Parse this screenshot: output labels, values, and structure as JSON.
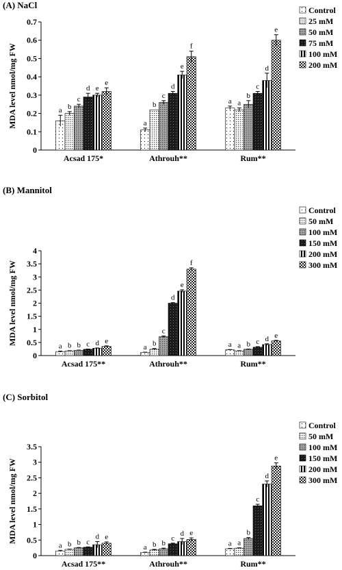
{
  "panels": [
    {
      "title": "(A) NaCl"
    },
    {
      "title": "(B) Mannitol"
    },
    {
      "title": "(C) Sorbitol"
    }
  ],
  "patterns": [
    "dots",
    "fine-dots",
    "grid",
    "solid-dark",
    "vertical-stripes",
    "checker"
  ],
  "chart_data": [
    {
      "type": "bar",
      "title": "(A) NaCl",
      "ylabel": "MDA level nmol/mg FW",
      "categories": [
        "Acsad 175*",
        "Athrouh**",
        "Rum**"
      ],
      "ylim": [
        0,
        0.7
      ],
      "yticks": [
        "0",
        "0.1",
        "0.2",
        "0.3",
        "0.4",
        "0.5",
        "0.6",
        "0.7"
      ],
      "series": [
        {
          "name": "Control",
          "values": [
            0.16,
            0.11,
            0.23
          ],
          "errors": [
            0.03,
            0.01,
            0.01
          ],
          "letters": [
            "a",
            "a",
            "a"
          ]
        },
        {
          "name": "25 mM",
          "values": [
            0.2,
            0.22,
            0.22
          ],
          "errors": [
            0.01,
            0.0,
            0.01
          ],
          "letters": [
            "b",
            "b",
            "a"
          ]
        },
        {
          "name": "50 mM",
          "values": [
            0.24,
            0.26,
            0.25
          ],
          "errors": [
            0.01,
            0.01,
            0.02
          ],
          "letters": [
            "c",
            "c",
            "b"
          ]
        },
        {
          "name": "75 mM",
          "values": [
            0.29,
            0.31,
            0.31
          ],
          "errors": [
            0.02,
            0.01,
            0.01
          ],
          "letters": [
            "d",
            "d",
            "c"
          ]
        },
        {
          "name": "100 mM",
          "values": [
            0.3,
            0.41,
            0.38
          ],
          "errors": [
            0.01,
            0.02,
            0.04
          ],
          "letters": [
            "e",
            "e",
            "d"
          ]
        },
        {
          "name": "200 mM",
          "values": [
            0.32,
            0.51,
            0.6
          ],
          "errors": [
            0.02,
            0.03,
            0.03
          ],
          "letters": [
            "e",
            "f",
            "e"
          ]
        }
      ],
      "legend": "right"
    },
    {
      "type": "bar",
      "title": "(B) Mannitol",
      "ylabel": "MDA level nmol/mg FW",
      "categories": [
        "Acsad 175**",
        "Athrouh**",
        "Rum**"
      ],
      "ylim": [
        0,
        4
      ],
      "yticks": [
        "0",
        "0.5",
        "1",
        "1.5",
        "2",
        "2.5",
        "3",
        "3.5",
        "4"
      ],
      "series": [
        {
          "name": "Control",
          "values": [
            0.15,
            0.12,
            0.22
          ],
          "errors": [
            0.02,
            0.01,
            0.01
          ],
          "letters": [
            "a",
            "a",
            "a"
          ]
        },
        {
          "name": "50 mM",
          "values": [
            0.18,
            0.24,
            0.18
          ],
          "errors": [
            0.01,
            0.03,
            0.01
          ],
          "letters": [
            "b",
            "b",
            "a"
          ]
        },
        {
          "name": "100 mM",
          "values": [
            0.2,
            0.72,
            0.24
          ],
          "errors": [
            0.01,
            0.03,
            0.01
          ],
          "letters": [
            "b",
            "c",
            "b"
          ]
        },
        {
          "name": "150 mM",
          "values": [
            0.24,
            2.0,
            0.32
          ],
          "errors": [
            0.01,
            0.02,
            0.02
          ],
          "letters": [
            "c",
            "d",
            "c"
          ]
        },
        {
          "name": "200 mM",
          "values": [
            0.28,
            2.46,
            0.42
          ],
          "errors": [
            0.01,
            0.05,
            0.03
          ],
          "letters": [
            "d",
            "e",
            "d"
          ]
        },
        {
          "name": "300 mM",
          "values": [
            0.35,
            3.3,
            0.56
          ],
          "errors": [
            0.02,
            0.05,
            0.02
          ],
          "letters": [
            "e",
            "f",
            "e"
          ]
        }
      ],
      "legend": "right"
    },
    {
      "type": "bar",
      "title": "(C) Sorbitol",
      "ylabel": "MDA level nmol/mg FW",
      "categories": [
        "Acsad 175**",
        "Athrouh**",
        "Rum**"
      ],
      "ylim": [
        0,
        3.5
      ],
      "yticks": [
        "0",
        "0.5",
        "1",
        "1.5",
        "2",
        "2.5",
        "3",
        "3.5"
      ],
      "series": [
        {
          "name": "Control",
          "values": [
            0.15,
            0.1,
            0.22
          ],
          "errors": [
            0.02,
            0.01,
            0.01
          ],
          "letters": [
            "a",
            "a",
            "a"
          ]
        },
        {
          "name": "50 mM",
          "values": [
            0.2,
            0.18,
            0.24
          ],
          "errors": [
            0.01,
            0.02,
            0.01
          ],
          "letters": [
            "b",
            "b",
            "a"
          ]
        },
        {
          "name": "100 mM",
          "values": [
            0.25,
            0.22,
            0.55
          ],
          "errors": [
            0.01,
            0.02,
            0.03
          ],
          "letters": [
            "b",
            "b",
            "b"
          ]
        },
        {
          "name": "150 mM",
          "values": [
            0.27,
            0.38,
            1.6
          ],
          "errors": [
            0.01,
            0.02,
            0.05
          ],
          "letters": [
            "c",
            "c",
            "c"
          ]
        },
        {
          "name": "200 mM",
          "values": [
            0.35,
            0.45,
            2.3
          ],
          "errors": [
            0.1,
            0.1,
            0.1
          ],
          "letters": [
            "d",
            "d",
            "d"
          ]
        },
        {
          "name": "300 mM",
          "values": [
            0.4,
            0.52,
            2.88
          ],
          "errors": [
            0.04,
            0.05,
            0.1
          ],
          "letters": [
            "e",
            "e",
            "e"
          ]
        }
      ],
      "legend": "right"
    }
  ]
}
